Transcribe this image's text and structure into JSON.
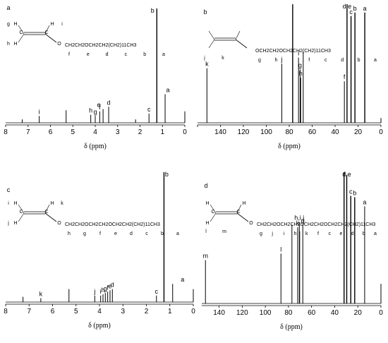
{
  "chart_data": [
    {
      "panel": "a",
      "type": "line",
      "xlabel": "δ (ppm)",
      "xlim": [
        8,
        0
      ],
      "xticks": [
        8,
        7,
        6,
        5,
        4,
        3,
        2,
        1,
        0
      ],
      "xtick_labels": [
        "8",
        "7",
        "6",
        "5",
        "4",
        "3",
        "2",
        "1",
        "0"
      ],
      "structure": {
        "atoms": [
          "H",
          "H",
          "H",
          "C",
          "C",
          "O"
        ],
        "atom_letters": [
          "g",
          "i",
          "h"
        ],
        "chain": "CH2CH2OCH2CH2(CH2)11CH3",
        "chain_letters": [
          "f",
          "e",
          "d",
          "c",
          "b",
          "a"
        ]
      },
      "peaks": [
        {
          "ppm": 7.26,
          "height": 0.03,
          "label": ""
        },
        {
          "ppm": 6.5,
          "height": 0.06,
          "label": "i"
        },
        {
          "ppm": 5.3,
          "height": 0.11,
          "label": ""
        },
        {
          "ppm": 4.2,
          "height": 0.07,
          "label": "h"
        },
        {
          "ppm": 4.0,
          "height": 0.06,
          "label": "g"
        },
        {
          "ppm": 3.8,
          "height": 0.1,
          "label": "f"
        },
        {
          "ppm": 3.65,
          "height": 0.12,
          "label": "e"
        },
        {
          "ppm": 3.4,
          "height": 0.14,
          "label": "d"
        },
        {
          "ppm": 2.2,
          "height": 0.03,
          "label": ""
        },
        {
          "ppm": 1.6,
          "height": 0.08,
          "label": "c"
        },
        {
          "ppm": 1.25,
          "height": 1.0,
          "label": "b"
        },
        {
          "ppm": 0.88,
          "height": 0.25,
          "label": "a"
        },
        {
          "ppm": 0.0,
          "height": 0.1,
          "label": ""
        }
      ]
    },
    {
      "panel": "b",
      "type": "line",
      "xlabel": "δ (ppm)",
      "xlim": [
        160,
        0
      ],
      "xticks": [
        160,
        140,
        120,
        100,
        80,
        60,
        40,
        20,
        0
      ],
      "xtick_labels": [
        "",
        "140",
        "120",
        "100",
        "80",
        "60",
        "40",
        "20",
        "0"
      ],
      "structure": {
        "atom_letters": [
          "j",
          "k"
        ],
        "chain": "OCH2CH2OCH2CH2(CH2)11CH3",
        "chain_letters": [
          "g",
          "h",
          "i",
          "f",
          "c",
          "d",
          "b",
          "a"
        ]
      },
      "peaks": [
        {
          "ppm": 151.8,
          "height": 0.46,
          "label": "k"
        },
        {
          "ppm": 86.5,
          "height": 0.5,
          "label": "j"
        },
        {
          "ppm": 77.0,
          "height": 1.0,
          "label": ""
        },
        {
          "ppm": 71.9,
          "height": 0.55,
          "label": "i"
        },
        {
          "ppm": 70.5,
          "height": 0.45,
          "label": "g"
        },
        {
          "ppm": 70.0,
          "height": 0.38,
          "label": "h"
        },
        {
          "ppm": 67.8,
          "height": 0.6,
          "label": ""
        },
        {
          "ppm": 31.9,
          "height": 0.35,
          "label": "f"
        },
        {
          "ppm": 29.6,
          "height": 1.0,
          "label": "d,e"
        },
        {
          "ppm": 26.1,
          "height": 0.9,
          "label": "c"
        },
        {
          "ppm": 22.7,
          "height": 0.93,
          "label": "b"
        },
        {
          "ppm": 14.1,
          "height": 0.93,
          "label": "a"
        },
        {
          "ppm": 0.0,
          "height": 0.04,
          "label": ""
        }
      ]
    },
    {
      "panel": "c",
      "type": "line",
      "xlabel": "δ (ppm)",
      "xlim": [
        8,
        0
      ],
      "xticks": [
        8,
        7,
        6,
        5,
        4,
        3,
        2,
        1,
        0
      ],
      "xtick_labels": [
        "8",
        "7",
        "6",
        "5",
        "4",
        "3",
        "2",
        "1",
        "0"
      ],
      "structure": {
        "atoms": [
          "H",
          "H",
          "H",
          "C",
          "C",
          "O"
        ],
        "atom_letters": [
          "i",
          "k",
          "j"
        ],
        "chain": "CH2CH2OCH2CH2OCH2CH2(CH2)11CH3",
        "chain_letters": [
          "h",
          "g",
          "f",
          "e",
          "d",
          "c",
          "b",
          "a"
        ]
      },
      "peaks": [
        {
          "ppm": 7.26,
          "height": 0.04,
          "label": ""
        },
        {
          "ppm": 6.5,
          "height": 0.03,
          "label": "k"
        },
        {
          "ppm": 5.3,
          "height": 0.1,
          "label": ""
        },
        {
          "ppm": 4.2,
          "height": 0.05,
          "label": "j"
        },
        {
          "ppm": 3.95,
          "height": 0.05,
          "label": "i"
        },
        {
          "ppm": 3.85,
          "height": 0.06,
          "label": "h"
        },
        {
          "ppm": 3.75,
          "height": 0.07,
          "label": "g"
        },
        {
          "ppm": 3.65,
          "height": 0.08,
          "label": "f"
        },
        {
          "ppm": 3.55,
          "height": 0.09,
          "label": "e"
        },
        {
          "ppm": 3.45,
          "height": 0.1,
          "label": "d"
        },
        {
          "ppm": 1.57,
          "height": 0.05,
          "label": "c"
        },
        {
          "ppm": 1.25,
          "height": 1.0,
          "label": "b"
        },
        {
          "ppm": 0.88,
          "height": 0.14,
          "label": "a"
        },
        {
          "ppm": 0.0,
          "height": 0.1,
          "label": ""
        }
      ]
    },
    {
      "panel": "d",
      "type": "line",
      "xlabel": "δ (ppm)",
      "xlim": [
        155,
        0
      ],
      "xticks": [
        140,
        120,
        100,
        80,
        60,
        40,
        20,
        0
      ],
      "xtick_labels": [
        "140",
        "120",
        "100",
        "80",
        "60",
        "40",
        "20",
        "0"
      ],
      "structure": {
        "atoms": [
          "H",
          "H",
          "H",
          "C",
          "C",
          "O"
        ],
        "atom_letters": [
          "l",
          "m"
        ],
        "chain": "CH2CH2OCH2CH2OCH2CH2OCH2CH2(CH2)11CH3",
        "chain_letters": [
          "g",
          "j",
          "i",
          "h",
          "k",
          "f",
          "c",
          "e",
          "d",
          "b",
          "a"
        ]
      },
      "peaks": [
        {
          "ppm": 151.8,
          "height": 0.33,
          "label": "m"
        },
        {
          "ppm": 86.5,
          "height": 0.38,
          "label": "l"
        },
        {
          "ppm": 77.0,
          "height": 0.6,
          "label": ""
        },
        {
          "ppm": 72.0,
          "height": 0.58,
          "label": "k"
        },
        {
          "ppm": 70.6,
          "height": 0.62,
          "label": "h,i,j"
        },
        {
          "ppm": 70.3,
          "height": 0.55,
          "label": ""
        },
        {
          "ppm": 67.6,
          "height": 0.6,
          "label": "g"
        },
        {
          "ppm": 31.9,
          "height": 1.0,
          "label": "f"
        },
        {
          "ppm": 29.6,
          "height": 0.98,
          "label": "d,e"
        },
        {
          "ppm": 26.1,
          "height": 0.82,
          "label": "c"
        },
        {
          "ppm": 22.7,
          "height": 0.81,
          "label": "b"
        },
        {
          "ppm": 14.1,
          "height": 0.74,
          "label": "a"
        },
        {
          "ppm": 0.0,
          "height": 0.15,
          "label": ""
        }
      ]
    }
  ]
}
